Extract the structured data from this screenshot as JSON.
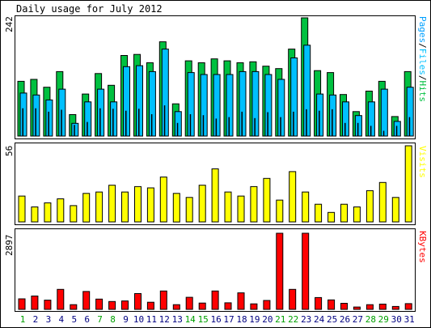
{
  "title": "Daily usage for July 2012",
  "colors": {
    "background": "#ffffff",
    "frame": "#000000",
    "hits": "#00c040",
    "files": "#00c0ff",
    "pages": "#00a0ff",
    "visits": "#ffff00",
    "kbytes": "#ff0000",
    "weekday_label": "#000080",
    "weekend_label": "#00a000"
  },
  "chart_data": [
    {
      "type": "bar",
      "panel": "pages-files-hits",
      "ymax_label": "242",
      "ylim": [
        0,
        242
      ],
      "legend": {
        "pages": "Pages",
        "sep1": "/",
        "files": "Files",
        "sep2": "/",
        "hits": "Hits"
      },
      "categories": [
        "1",
        "2",
        "3",
        "4",
        "5",
        "6",
        "7",
        "8",
        "9",
        "10",
        "11",
        "12",
        "13",
        "14",
        "15",
        "16",
        "17",
        "18",
        "19",
        "20",
        "21",
        "22",
        "23",
        "24",
        "25",
        "26",
        "27",
        "28",
        "29",
        "30",
        "31"
      ],
      "series": [
        {
          "name": "Hits",
          "values": [
            112,
            116,
            100,
            132,
            44,
            86,
            128,
            104,
            165,
            167,
            150,
            193,
            66,
            154,
            150,
            158,
            154,
            150,
            152,
            143,
            138,
            178,
            242,
            134,
            130,
            85,
            50,
            92,
            112,
            40,
            132
          ]
        },
        {
          "name": "Files",
          "values": [
            88,
            84,
            74,
            96,
            26,
            70,
            96,
            70,
            142,
            144,
            132,
            178,
            50,
            130,
            126,
            126,
            126,
            132,
            132,
            126,
            116,
            160,
            186,
            86,
            84,
            70,
            42,
            70,
            96,
            30,
            100
          ]
        },
        {
          "name": "Pages",
          "values": [
            56,
            56,
            49,
            53,
            22,
            28,
            56,
            55,
            51,
            55,
            44,
            62,
            26,
            44,
            42,
            35,
            38,
            49,
            36,
            48,
            38,
            49,
            54,
            51,
            54,
            26,
            26,
            20,
            10,
            20,
            38
          ]
        }
      ]
    },
    {
      "type": "bar",
      "panel": "visits",
      "ymax_label": "56",
      "ylim": [
        0,
        56
      ],
      "legend": "Visits",
      "categories": [
        "1",
        "2",
        "3",
        "4",
        "5",
        "6",
        "7",
        "8",
        "9",
        "10",
        "11",
        "12",
        "13",
        "14",
        "15",
        "16",
        "17",
        "18",
        "19",
        "20",
        "21",
        "22",
        "23",
        "24",
        "25",
        "26",
        "27",
        "28",
        "29",
        "30",
        "31"
      ],
      "series": [
        {
          "name": "Visits",
          "values": [
            19,
            11,
            14,
            17,
            12,
            21,
            22,
            27,
            22,
            26,
            25,
            33,
            21,
            18,
            27,
            39,
            22,
            19,
            26,
            32,
            16,
            37,
            22,
            13,
            7,
            13,
            11,
            23,
            29,
            18,
            56
          ]
        }
      ]
    },
    {
      "type": "bar",
      "panel": "kbytes",
      "ymax_label": "2897",
      "ylim": [
        0,
        2897
      ],
      "legend": "KBytes",
      "categories": [
        "1",
        "2",
        "3",
        "4",
        "5",
        "6",
        "7",
        "8",
        "9",
        "10",
        "11",
        "12",
        "13",
        "14",
        "15",
        "16",
        "17",
        "18",
        "19",
        "20",
        "21",
        "22",
        "23",
        "24",
        "25",
        "26",
        "27",
        "28",
        "29",
        "30",
        "31"
      ],
      "series": [
        {
          "name": "KBytes",
          "values": [
            400,
            510,
            350,
            760,
            180,
            680,
            390,
            300,
            320,
            600,
            270,
            700,
            180,
            460,
            240,
            700,
            250,
            630,
            210,
            340,
            2897,
            760,
            2897,
            450,
            360,
            230,
            90,
            180,
            200,
            110,
            220
          ]
        }
      ]
    }
  ],
  "weekend_days": [
    1,
    7,
    8,
    14,
    15,
    21,
    22,
    28,
    29
  ]
}
